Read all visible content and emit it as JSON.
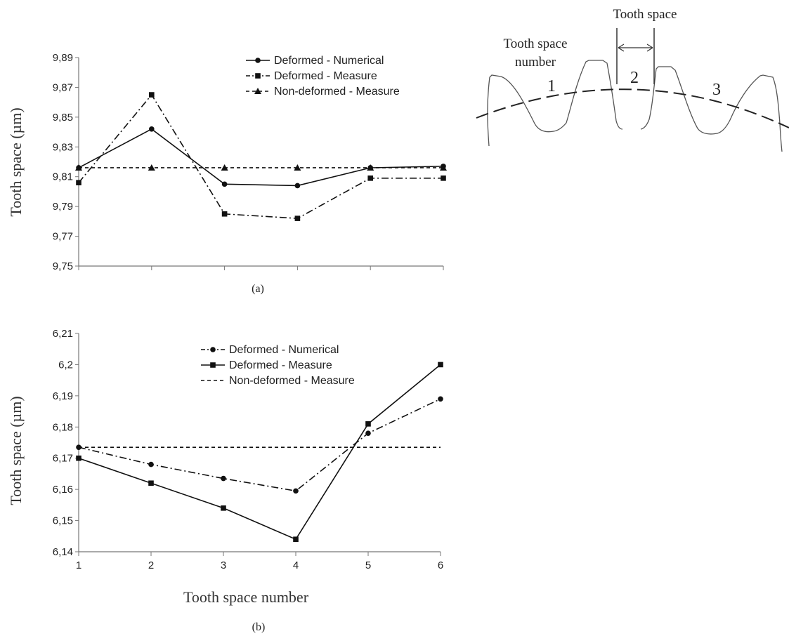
{
  "figure": {
    "caption_a": "(a)",
    "caption_b": "(b)"
  },
  "schematic": {
    "tooth_space_label": "Tooth space",
    "tooth_space_number_line1": "Tooth space",
    "tooth_space_number_line2": "number",
    "numbers": [
      "1",
      "2",
      "3"
    ]
  },
  "chart_data": [
    {
      "type": "line",
      "title": "",
      "xlabel": "",
      "ylabel": "Tooth space (µm)",
      "x": [
        1,
        2,
        3,
        4,
        5,
        6
      ],
      "xticks": [],
      "ylim": [
        9.75,
        9.89
      ],
      "yticks": [
        "9,75",
        "9,77",
        "9,79",
        "9,81",
        "9,83",
        "9,85",
        "9,87",
        "9,89"
      ],
      "grid": false,
      "legend_position": "top-right",
      "series": [
        {
          "name": "Deformed - Numerical",
          "marker": "circle",
          "line": "solid",
          "values": [
            9.816,
            9.842,
            9.805,
            9.804,
            9.816,
            9.817
          ]
        },
        {
          "name": "Deformed - Measure",
          "marker": "square",
          "line": "dashdot",
          "values": [
            9.806,
            9.865,
            9.785,
            9.782,
            9.809,
            9.809
          ]
        },
        {
          "name": "Non-deformed - Measure",
          "marker": "triangle",
          "line": "dashed",
          "values": [
            9.816,
            9.816,
            9.816,
            9.816,
            9.816,
            9.816
          ]
        }
      ]
    },
    {
      "type": "line",
      "title": "",
      "xlabel": "Tooth space number",
      "ylabel": "Tooth space (µm)",
      "x": [
        1,
        2,
        3,
        4,
        5,
        6
      ],
      "xticks": [
        "1",
        "2",
        "3",
        "4",
        "5",
        "6"
      ],
      "ylim": [
        6.14,
        6.21
      ],
      "yticks": [
        "6,14",
        "6,15",
        "6,16",
        "6,17",
        "6,18",
        "6,19",
        "6,2",
        "6,21"
      ],
      "grid": false,
      "legend_position": "top-right",
      "series": [
        {
          "name": "Deformed - Numerical",
          "marker": "circle",
          "line": "dashdot",
          "values": [
            6.1735,
            6.168,
            6.1635,
            6.1595,
            6.178,
            6.189
          ]
        },
        {
          "name": "Deformed - Measure",
          "marker": "square",
          "line": "solid",
          "values": [
            6.17,
            6.162,
            6.154,
            6.144,
            6.181,
            6.2
          ]
        },
        {
          "name": "Non-deformed - Measure",
          "marker": "none",
          "line": "dashed",
          "values": [
            6.1735,
            6.1735,
            6.1735,
            6.1735,
            6.1735,
            6.1735
          ]
        }
      ]
    }
  ]
}
